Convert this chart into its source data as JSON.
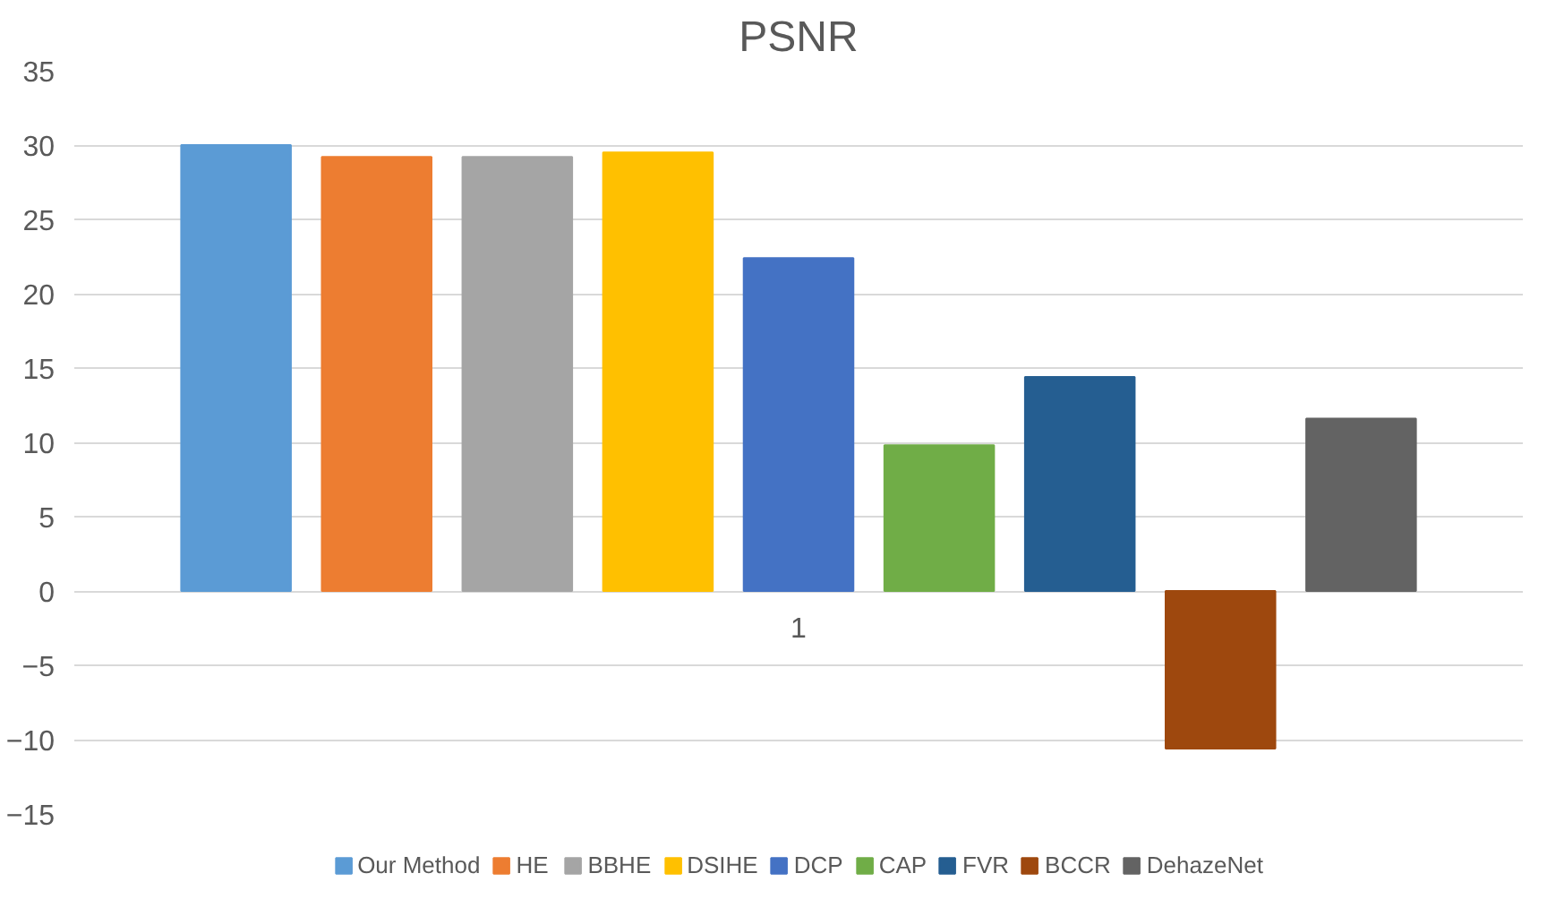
{
  "chart_data": {
    "type": "bar",
    "title": "PSNR",
    "categories": [
      "1"
    ],
    "series": [
      {
        "name": "Our Method",
        "color": "#5b9bd5",
        "values": [
          30.0
        ]
      },
      {
        "name": "HE",
        "color": "#ed7d31",
        "values": [
          29.2
        ]
      },
      {
        "name": "BBHE",
        "color": "#a5a5a5",
        "values": [
          29.2
        ]
      },
      {
        "name": "DSIHE",
        "color": "#ffc000",
        "values": [
          29.5
        ]
      },
      {
        "name": "DCP",
        "color": "#4472c4",
        "values": [
          22.4
        ]
      },
      {
        "name": "CAP",
        "color": "#70ad47",
        "values": [
          9.8
        ]
      },
      {
        "name": "FVR",
        "color": "#255e91",
        "values": [
          14.4
        ]
      },
      {
        "name": "BCCR",
        "color": "#9e480e",
        "values": [
          -10.6
        ]
      },
      {
        "name": "DehazeNet",
        "color": "#636363",
        "values": [
          11.6
        ]
      }
    ],
    "ylim": [
      -15,
      35
    ],
    "yticks": [
      -15,
      -10,
      -5,
      0,
      5,
      10,
      15,
      20,
      25,
      30,
      35
    ],
    "grid": "y",
    "legend": "bottom"
  }
}
